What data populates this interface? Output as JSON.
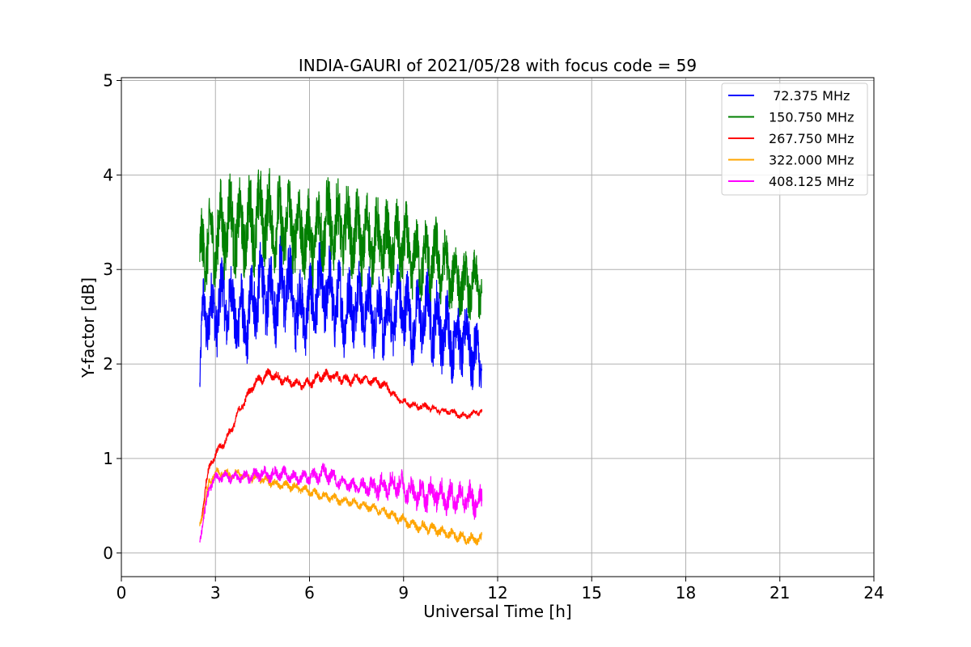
{
  "chart_data": {
    "type": "line",
    "title": "INDIA-GAURI of 2021/05/28 with focus code = 59",
    "xlabel": "Universal Time [h]",
    "ylabel": "Y-factor [dB]",
    "xlim": [
      0,
      24
    ],
    "ylim": [
      -0.25,
      5.03
    ],
    "xticks": [
      "0",
      "3",
      "6",
      "9",
      "12",
      "15",
      "18",
      "21",
      "24"
    ],
    "yticks": [
      "0",
      "1",
      "2",
      "3",
      "4",
      "5"
    ],
    "grid": true,
    "legend_position": "top-right",
    "series": [
      {
        "name": " 72.375 MHz",
        "color": "#0000ff",
        "x": [
          2.5,
          2.6,
          2.75,
          3.0,
          3.25,
          3.5,
          3.75,
          4.0,
          4.25,
          4.5,
          4.75,
          5.0,
          5.25,
          5.5,
          5.75,
          6.0,
          6.25,
          6.5,
          6.75,
          7.0,
          7.25,
          7.5,
          7.75,
          8.0,
          8.25,
          8.5,
          8.75,
          9.0,
          9.25,
          9.5,
          9.75,
          10.0,
          10.25,
          10.5,
          10.75,
          11.0,
          11.25,
          11.5
        ],
        "y": [
          1.75,
          2.6,
          2.5,
          2.55,
          2.7,
          2.6,
          2.5,
          2.4,
          2.75,
          2.8,
          2.7,
          2.75,
          2.9,
          2.65,
          2.55,
          2.6,
          2.75,
          2.8,
          2.7,
          2.6,
          2.55,
          2.7,
          2.6,
          2.55,
          2.5,
          2.45,
          2.6,
          2.65,
          2.4,
          2.5,
          2.55,
          2.45,
          2.35,
          2.3,
          2.25,
          2.3,
          2.1,
          2.0
        ],
        "amp": [
          0.5,
          0.7,
          0.8,
          0.85,
          0.9,
          0.85,
          0.9,
          0.8,
          0.95,
          0.9,
          0.85,
          1.0,
          1.1,
          0.9,
          0.85,
          0.85,
          0.9,
          0.95,
          0.9,
          0.9,
          0.85,
          0.85,
          0.8,
          0.85,
          0.8,
          0.8,
          0.85,
          0.95,
          0.8,
          0.8,
          0.85,
          0.9,
          0.85,
          0.85,
          0.8,
          0.75,
          0.8,
          0.7
        ]
      },
      {
        "name": "150.750 MHz",
        "color": "#008000",
        "x": [
          2.5,
          2.6,
          2.75,
          3.0,
          3.25,
          3.5,
          3.75,
          4.0,
          4.25,
          4.5,
          4.75,
          5.0,
          5.25,
          5.5,
          5.75,
          6.0,
          6.25,
          6.5,
          6.75,
          7.0,
          7.25,
          7.5,
          7.75,
          8.0,
          8.25,
          8.5,
          8.75,
          9.0,
          9.25,
          9.5,
          9.75,
          10.0,
          10.25,
          10.5,
          10.75,
          11.0,
          11.25,
          11.5
        ],
        "y": [
          3.0,
          3.3,
          3.25,
          3.3,
          3.45,
          3.5,
          3.4,
          3.45,
          3.5,
          3.6,
          3.5,
          3.45,
          3.5,
          3.45,
          3.4,
          3.3,
          3.4,
          3.5,
          3.45,
          3.45,
          3.4,
          3.35,
          3.35,
          3.3,
          3.3,
          3.25,
          3.25,
          3.3,
          3.1,
          3.1,
          3.1,
          3.1,
          3.05,
          2.95,
          2.9,
          2.8,
          2.85,
          2.8
        ],
        "amp": [
          0.8,
          0.9,
          0.95,
          0.95,
          1.0,
          1.0,
          0.95,
          0.95,
          1.0,
          0.95,
          0.95,
          0.95,
          0.95,
          0.95,
          0.95,
          0.9,
          0.95,
          0.95,
          0.95,
          0.9,
          0.9,
          0.9,
          0.9,
          0.85,
          0.85,
          0.85,
          0.85,
          0.85,
          0.8,
          0.8,
          0.8,
          0.85,
          0.75,
          0.75,
          0.7,
          0.7,
          0.65,
          0.65
        ]
      },
      {
        "name": "267.750 MHz",
        "color": "#ff0000",
        "x": [
          2.55,
          2.7,
          2.85,
          3.0,
          3.25,
          3.5,
          3.75,
          4.0,
          4.25,
          4.5,
          4.75,
          5.0,
          5.25,
          5.5,
          5.75,
          6.0,
          6.25,
          6.5,
          6.75,
          7.0,
          7.25,
          7.5,
          7.75,
          8.0,
          8.25,
          8.5,
          8.75,
          9.0,
          9.25,
          9.5,
          9.75,
          10.0,
          10.25,
          10.5,
          10.75,
          11.0,
          11.25,
          11.5
        ],
        "y": [
          0.35,
          0.75,
          0.95,
          1.05,
          1.15,
          1.3,
          1.5,
          1.65,
          1.8,
          1.85,
          1.9,
          1.85,
          1.82,
          1.8,
          1.78,
          1.8,
          1.85,
          1.88,
          1.87,
          1.85,
          1.82,
          1.85,
          1.83,
          1.82,
          1.8,
          1.75,
          1.65,
          1.6,
          1.57,
          1.55,
          1.55,
          1.52,
          1.5,
          1.5,
          1.46,
          1.45,
          1.48,
          1.5
        ],
        "amp": [
          0.08,
          0.1,
          0.1,
          0.1,
          0.1,
          0.1,
          0.1,
          0.1,
          0.1,
          0.12,
          0.12,
          0.12,
          0.12,
          0.1,
          0.1,
          0.12,
          0.12,
          0.12,
          0.12,
          0.12,
          0.12,
          0.1,
          0.1,
          0.1,
          0.1,
          0.1,
          0.08,
          0.08,
          0.08,
          0.08,
          0.08,
          0.07,
          0.07,
          0.07,
          0.07,
          0.07,
          0.07,
          0.07
        ]
      },
      {
        "name": "322.000 MHz",
        "color": "#ffa500",
        "x": [
          2.5,
          2.65,
          2.8,
          3.0,
          3.25,
          3.5,
          3.75,
          4.0,
          4.25,
          4.5,
          4.75,
          5.0,
          5.25,
          5.5,
          5.75,
          6.0,
          6.25,
          6.5,
          6.75,
          7.0,
          7.25,
          7.5,
          7.75,
          8.0,
          8.25,
          8.5,
          8.75,
          9.0,
          9.25,
          9.5,
          9.75,
          10.0,
          10.25,
          10.5,
          10.75,
          11.0,
          11.25,
          11.5
        ],
        "y": [
          0.3,
          0.5,
          0.75,
          0.85,
          0.85,
          0.82,
          0.85,
          0.8,
          0.8,
          0.78,
          0.75,
          0.72,
          0.72,
          0.7,
          0.68,
          0.65,
          0.62,
          0.6,
          0.58,
          0.55,
          0.55,
          0.52,
          0.5,
          0.48,
          0.45,
          0.42,
          0.38,
          0.35,
          0.3,
          0.28,
          0.27,
          0.25,
          0.22,
          0.2,
          0.18,
          0.15,
          0.15,
          0.15
        ],
        "amp": [
          0.08,
          0.1,
          0.1,
          0.1,
          0.1,
          0.1,
          0.1,
          0.1,
          0.1,
          0.1,
          0.1,
          0.1,
          0.1,
          0.1,
          0.1,
          0.1,
          0.1,
          0.1,
          0.1,
          0.1,
          0.1,
          0.1,
          0.1,
          0.1,
          0.1,
          0.1,
          0.12,
          0.12,
          0.12,
          0.12,
          0.12,
          0.12,
          0.12,
          0.12,
          0.12,
          0.12,
          0.12,
          0.12
        ]
      },
      {
        "name": "408.125 MHz",
        "color": "#ff00ff",
        "x": [
          2.5,
          2.65,
          2.8,
          3.0,
          3.25,
          3.5,
          3.75,
          4.0,
          4.25,
          4.5,
          4.75,
          5.0,
          5.25,
          5.5,
          5.75,
          6.0,
          6.25,
          6.5,
          6.75,
          7.0,
          7.25,
          7.5,
          7.75,
          8.0,
          8.25,
          8.5,
          8.75,
          9.0,
          9.25,
          9.5,
          9.75,
          10.0,
          10.25,
          10.5,
          10.75,
          11.0,
          11.25,
          11.5
        ],
        "y": [
          0.15,
          0.4,
          0.7,
          0.8,
          0.8,
          0.8,
          0.8,
          0.8,
          0.82,
          0.85,
          0.82,
          0.85,
          0.83,
          0.8,
          0.8,
          0.8,
          0.82,
          0.85,
          0.8,
          0.75,
          0.72,
          0.7,
          0.7,
          0.7,
          0.7,
          0.72,
          0.75,
          0.7,
          0.65,
          0.62,
          0.62,
          0.65,
          0.6,
          0.58,
          0.6,
          0.58,
          0.55,
          0.55
        ],
        "amp": [
          0.12,
          0.15,
          0.12,
          0.12,
          0.12,
          0.12,
          0.12,
          0.15,
          0.15,
          0.15,
          0.15,
          0.15,
          0.15,
          0.15,
          0.15,
          0.15,
          0.18,
          0.2,
          0.18,
          0.15,
          0.15,
          0.18,
          0.2,
          0.25,
          0.28,
          0.3,
          0.32,
          0.3,
          0.3,
          0.32,
          0.35,
          0.38,
          0.35,
          0.35,
          0.35,
          0.35,
          0.38,
          0.38
        ]
      }
    ]
  }
}
